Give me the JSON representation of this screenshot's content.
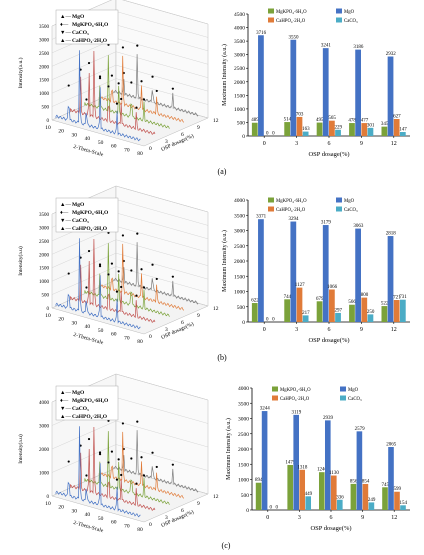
{
  "colors": {
    "mgkpo4": "#7ba23a",
    "mgo": "#4472c4",
    "cahpo4": "#e07b39",
    "caco3": "#4bacc6",
    "axis": "#000000"
  },
  "panels": [
    {
      "label": "(a)",
      "waterfall_legend": [
        "MgO",
        "MgKPO₄·6H₂O",
        "CaCO₃",
        "CaHPO₄·2H₂O"
      ],
      "waterfall_axes": {
        "z_label": "Intensity(a.u.)",
        "x_label": "2-Theta-Scale",
        "y_label": "OSP dosage(%)",
        "z_ticks": [
          "0",
          "500",
          "1000",
          "1500",
          "2000",
          "2500",
          "3000",
          "3500"
        ],
        "x_ticks": [
          "10",
          "20",
          "30",
          "40",
          "50",
          "60",
          "70",
          "80"
        ],
        "y_ticks": [
          "0",
          "3",
          "6",
          "9",
          "12"
        ]
      }
    },
    {
      "label": "(b)",
      "waterfall_legend": [
        "MgO",
        "MgKPO₄·6H₂O",
        "CaCO₃",
        "CaHPO₄·2H₂O"
      ],
      "waterfall_axes": {
        "z_label": "Intensity(a.u)",
        "x_label": "2-Theta-Scale",
        "y_label": "OSP dosage(%)",
        "z_ticks": [
          "0",
          "500",
          "1000",
          "1500",
          "2000",
          "2500",
          "3000",
          "3500"
        ],
        "x_ticks": [
          "10",
          "20",
          "30",
          "40",
          "50",
          "60",
          "70",
          "80"
        ],
        "y_ticks": [
          "0",
          "3",
          "6",
          "9",
          "12"
        ]
      }
    },
    {
      "label": "(c)",
      "waterfall_legend": [
        "MgO",
        "MgKPO₄·6H₂O",
        "CaCO₃",
        "CaHPO₄·2H₂O"
      ],
      "waterfall_axes": {
        "z_label": "Intensity(a.u)",
        "x_label": "2-Theta-Scale",
        "y_label": "OSP dosage(%)",
        "z_ticks": [
          "0",
          "1000",
          "2000",
          "3000",
          "4000"
        ],
        "x_ticks": [
          "10",
          "20",
          "30",
          "40",
          "50",
          "60",
          "70",
          "80"
        ],
        "y_ticks": [
          "0",
          "3",
          "6",
          "9",
          "12"
        ]
      }
    }
  ],
  "chart_data": [
    {
      "type": "bar",
      "panel": "(a)",
      "categories": [
        "0",
        "3",
        "6",
        "9",
        "12"
      ],
      "xlabel": "OSP dosage(%)",
      "ylabel": "Maximum Intensity (a.u.)",
      "ylim": [
        0,
        4500
      ],
      "yticks": [
        0,
        500,
        1000,
        1500,
        2000,
        2500,
        3000,
        3500,
        4000,
        4500
      ],
      "legend": "top",
      "series": [
        {
          "name": "MgKPO₄·6H₂O",
          "values": [
            489,
            514,
            495,
            478,
            345
          ]
        },
        {
          "name": "MgO",
          "values": [
            3716,
            3550,
            3241,
            3186,
            2932
          ]
        },
        {
          "name": "CaHPO₄·2H₂O",
          "values": [
            0,
            703,
            565,
            477,
            627
          ]
        },
        {
          "name": "CaCO₃",
          "values": [
            0,
            163,
            229,
            301,
            147
          ]
        }
      ]
    },
    {
      "type": "bar",
      "panel": "(b)",
      "categories": [
        "0",
        "3",
        "6",
        "9",
        "12"
      ],
      "xlabel": "OSP dosage(%)",
      "ylabel": "Maximum Intensity (a.u.)",
      "ylim": [
        0,
        4000
      ],
      "yticks": [
        0,
        500,
        1000,
        1500,
        2000,
        2500,
        3000,
        3500,
        4000
      ],
      "legend": "top",
      "series": [
        {
          "name": "MgKPO₄·6H₂O",
          "values": [
            622,
            744,
            679,
            566,
            522
          ]
        },
        {
          "name": "MgO",
          "values": [
            3371,
            3294,
            3179,
            3063,
            2818
          ]
        },
        {
          "name": "CaHPO₄·2H₂O",
          "values": [
            0,
            1127,
            1066,
            800,
            721
          ]
        },
        {
          "name": "CaCO₃",
          "values": [
            0,
            217,
            297,
            250,
            731
          ]
        }
      ]
    },
    {
      "type": "bar",
      "panel": "(c)",
      "categories": [
        "0",
        "3",
        "6",
        "9",
        "12"
      ],
      "xlabel": "OSP dosage(%)",
      "ylabel": "Maximum Intensity (a.u.)",
      "ylim": [
        0,
        4000
      ],
      "yticks": [
        0,
        500,
        1000,
        1500,
        2000,
        2500,
        3000,
        3500,
        4000
      ],
      "legend": "top",
      "series": [
        {
          "name": "MgKPO₄·6H₂O",
          "values": [
            894,
            1475,
            1240,
            856,
            745
          ]
        },
        {
          "name": "MgO",
          "values": [
            3244,
            3119,
            2939,
            2579,
            2065
          ]
        },
        {
          "name": "CaHPO₄·2H₂O",
          "values": [
            0,
            1318,
            1130,
            854,
            599
          ]
        },
        {
          "name": "CaCO₃",
          "values": [
            0,
            449,
            336,
            249,
            154
          ]
        }
      ]
    }
  ]
}
